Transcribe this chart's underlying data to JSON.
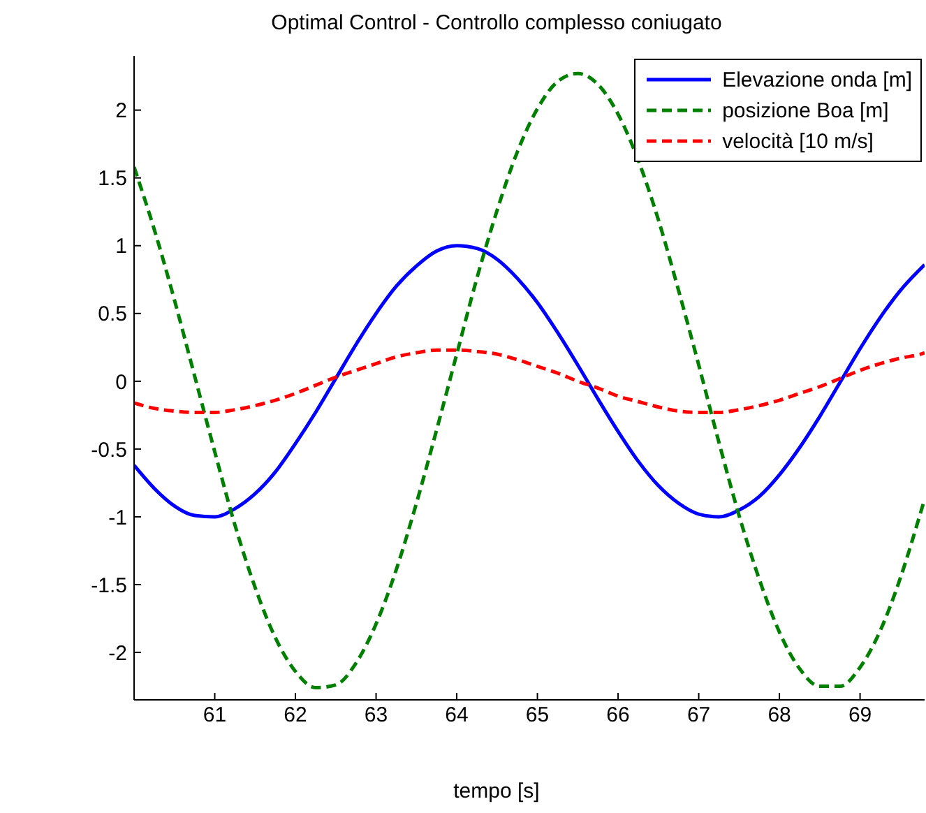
{
  "chart_data": {
    "type": "line",
    "title": "Optimal Control - Controllo complesso coniugato",
    "xlabel": "tempo [s]",
    "x": [
      60,
      60.25,
      60.5,
      60.75,
      61,
      61.25,
      61.5,
      61.75,
      62,
      62.25,
      62.5,
      62.75,
      63,
      63.25,
      63.5,
      63.75,
      64,
      64.25,
      64.5,
      64.75,
      65,
      65.25,
      65.5,
      65.75,
      66,
      66.25,
      66.5,
      66.75,
      67,
      67.25,
      67.5,
      67.75,
      68,
      68.25,
      68.5,
      68.75,
      69,
      69.25,
      69.5,
      69.75,
      69.8
    ],
    "series": [
      {
        "name": "Elevazione onda [m]",
        "color": "#0000ff",
        "line_style": "solid",
        "values": [
          -0.62,
          -0.79,
          -0.92,
          -0.99,
          -1.0,
          -0.94,
          -0.83,
          -0.67,
          -0.46,
          -0.23,
          0.02,
          0.27,
          0.5,
          0.7,
          0.85,
          0.96,
          1.0,
          0.98,
          0.9,
          0.76,
          0.58,
          0.36,
          0.12,
          -0.13,
          -0.37,
          -0.59,
          -0.77,
          -0.9,
          -0.98,
          -1.0,
          -0.95,
          -0.85,
          -0.69,
          -0.49,
          -0.26,
          -0.01,
          0.24,
          0.47,
          0.67,
          0.83,
          0.86
        ]
      },
      {
        "name": "posizione Boa [m]",
        "color": "#008000",
        "line_style": "dashed",
        "values": [
          1.58,
          1.12,
          0.6,
          0.04,
          -0.52,
          -1.06,
          -1.52,
          -1.89,
          -2.14,
          -2.26,
          -2.24,
          -2.08,
          -1.79,
          -1.39,
          -0.9,
          -0.36,
          0.2,
          0.76,
          1.26,
          1.69,
          2.01,
          2.21,
          2.27,
          2.19,
          1.97,
          1.63,
          1.19,
          0.67,
          0.12,
          -0.45,
          -0.99,
          -1.46,
          -1.85,
          -2.12,
          -2.25,
          -2.25,
          -2.11,
          -1.84,
          -1.45,
          -0.97,
          -0.87
        ]
      },
      {
        "name": "velocità [10 m/s]",
        "color": "#ff0000",
        "line_style": "dashed",
        "values": [
          -0.16,
          -0.2,
          -0.22,
          -0.23,
          -0.23,
          -0.21,
          -0.18,
          -0.14,
          -0.09,
          -0.03,
          0.03,
          0.08,
          0.13,
          0.18,
          0.21,
          0.23,
          0.23,
          0.22,
          0.2,
          0.16,
          0.11,
          0.06,
          0.0,
          -0.05,
          -0.11,
          -0.15,
          -0.19,
          -0.22,
          -0.23,
          -0.23,
          -0.21,
          -0.18,
          -0.14,
          -0.09,
          -0.04,
          0.02,
          0.08,
          0.13,
          0.17,
          0.2,
          0.21
        ]
      }
    ],
    "xlim": [
      60,
      69.8
    ],
    "xticks": [
      61,
      62,
      63,
      64,
      65,
      66,
      67,
      68,
      69
    ],
    "ylim": [
      -2.35,
      2.4
    ],
    "yticks": [
      -2,
      -1.5,
      -1,
      -0.5,
      0,
      0.5,
      1,
      1.5,
      2
    ],
    "grid": false,
    "legend": "top right",
    "marker": "none"
  }
}
